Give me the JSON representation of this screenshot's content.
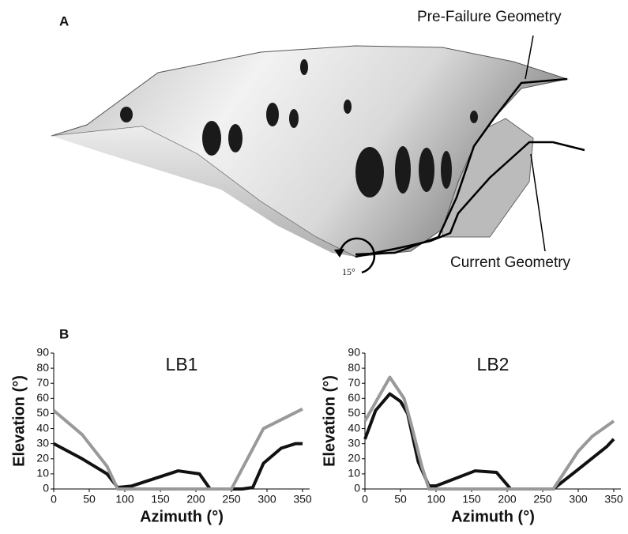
{
  "panel_a": {
    "label": "A",
    "upper_annotation": "Pre-Failure Geometry",
    "lower_annotation": "Current Geometry",
    "angle_annotation": "15°"
  },
  "panel_b": {
    "label": "B"
  },
  "chart_data": [
    {
      "type": "line",
      "title": "LB1",
      "x_label": "Azimuth (°)",
      "y_label": "Elevation (°)",
      "xlim": [
        0,
        360
      ],
      "xticks": [
        0,
        50,
        100,
        150,
        200,
        250,
        300,
        350
      ],
      "ylim": [
        0,
        90
      ],
      "yticks": [
        0,
        10,
        20,
        30,
        40,
        50,
        60,
        70,
        80,
        90
      ],
      "series": [
        {
          "color": "#111111",
          "x": [
            0,
            40,
            75,
            90,
            110,
            175,
            205,
            220,
            265,
            280,
            295,
            320,
            340,
            350
          ],
          "values": [
            30,
            20,
            10,
            1,
            2,
            12,
            10,
            0,
            0,
            1,
            17,
            27,
            30,
            30
          ]
        },
        {
          "color": "#999999",
          "x": [
            0,
            40,
            75,
            90,
            250,
            295,
            350
          ],
          "values": [
            52,
            36,
            15,
            0,
            0,
            40,
            53
          ]
        }
      ]
    },
    {
      "type": "line",
      "title": "LB2",
      "x_label": "Azimuth (°)",
      "y_label": "Elevation (°)",
      "xlim": [
        0,
        360
      ],
      "xticks": [
        0,
        50,
        100,
        150,
        200,
        250,
        300,
        350
      ],
      "ylim": [
        0,
        90
      ],
      "yticks": [
        0,
        10,
        20,
        30,
        40,
        50,
        60,
        70,
        80,
        90
      ],
      "series": [
        {
          "color": "#111111",
          "x": [
            0,
            15,
            35,
            50,
            60,
            75,
            90,
            100,
            155,
            185,
            205,
            265,
            300,
            340,
            350
          ],
          "values": [
            33,
            52,
            63,
            58,
            50,
            18,
            2,
            2,
            12,
            11,
            0,
            0,
            13,
            28,
            33
          ]
        },
        {
          "color": "#999999",
          "x": [
            0,
            35,
            55,
            65,
            80,
            90,
            265,
            300,
            320,
            350
          ],
          "values": [
            45,
            74,
            60,
            43,
            15,
            0,
            0,
            25,
            35,
            45
          ]
        }
      ]
    }
  ]
}
